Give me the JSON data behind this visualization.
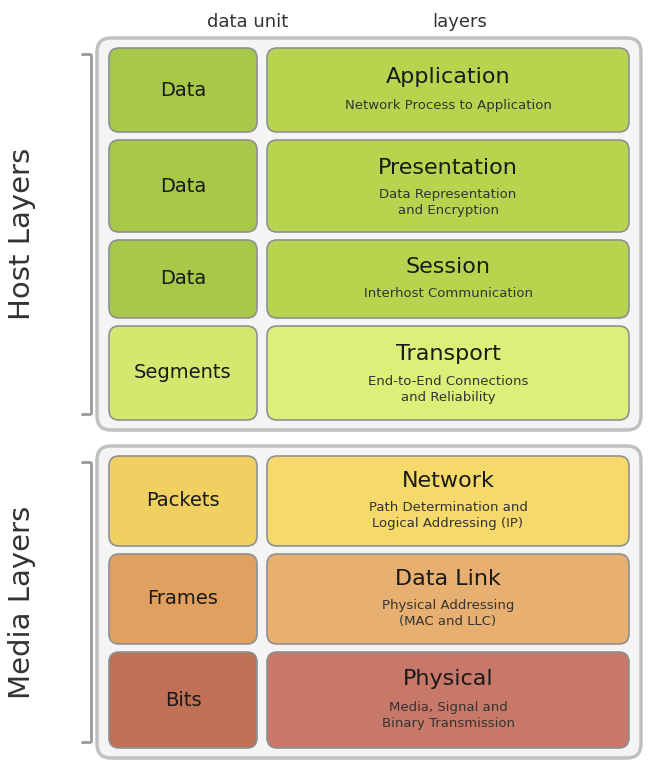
{
  "title_col1": "data unit",
  "title_col2": "layers",
  "host_label": "Host Layers",
  "media_label": "Media Layers",
  "host_rows": [
    {
      "unit": "Data",
      "layer": "Application",
      "desc": "Network Process to Application",
      "unit_color": "#a8c84a",
      "layer_color": "#b8d44e"
    },
    {
      "unit": "Data",
      "layer": "Presentation",
      "desc": "Data Representation\nand Encryption",
      "unit_color": "#a8c84a",
      "layer_color": "#b8d44e"
    },
    {
      "unit": "Data",
      "layer": "Session",
      "desc": "Interhost Communication",
      "unit_color": "#a8c84a",
      "layer_color": "#b8d44e"
    },
    {
      "unit": "Segments",
      "layer": "Transport",
      "desc": "End-to-End Connections\nand Reliability",
      "unit_color": "#d4e870",
      "layer_color": "#ddef78"
    }
  ],
  "media_rows": [
    {
      "unit": "Packets",
      "layer": "Network",
      "desc": "Path Determination and\nLogical Addressing (IP)",
      "unit_color": "#f0d060",
      "layer_color": "#f5d96a"
    },
    {
      "unit": "Frames",
      "layer": "Data Link",
      "desc": "Physical Addressing\n(MAC and LLC)",
      "unit_color": "#e0a060",
      "layer_color": "#e8b070"
    },
    {
      "unit": "Bits",
      "layer": "Physical",
      "desc": "Media, Signal and\nBinary Transmission",
      "unit_color": "#c07055",
      "layer_color": "#c87868"
    }
  ],
  "outer_border_color": "#c0c0c0",
  "fig_bg": "#ffffff"
}
